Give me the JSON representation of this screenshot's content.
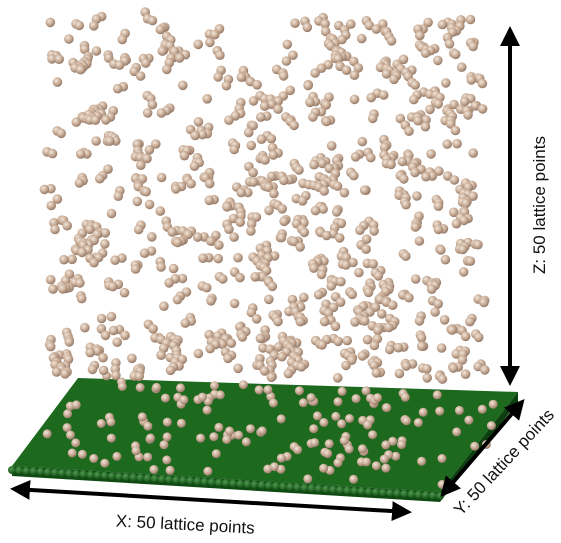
{
  "labels": {
    "x": "X: 50 lattice points",
    "y": "Y: 50 lattice points",
    "z": "Z: 50 lattice points"
  }
}
